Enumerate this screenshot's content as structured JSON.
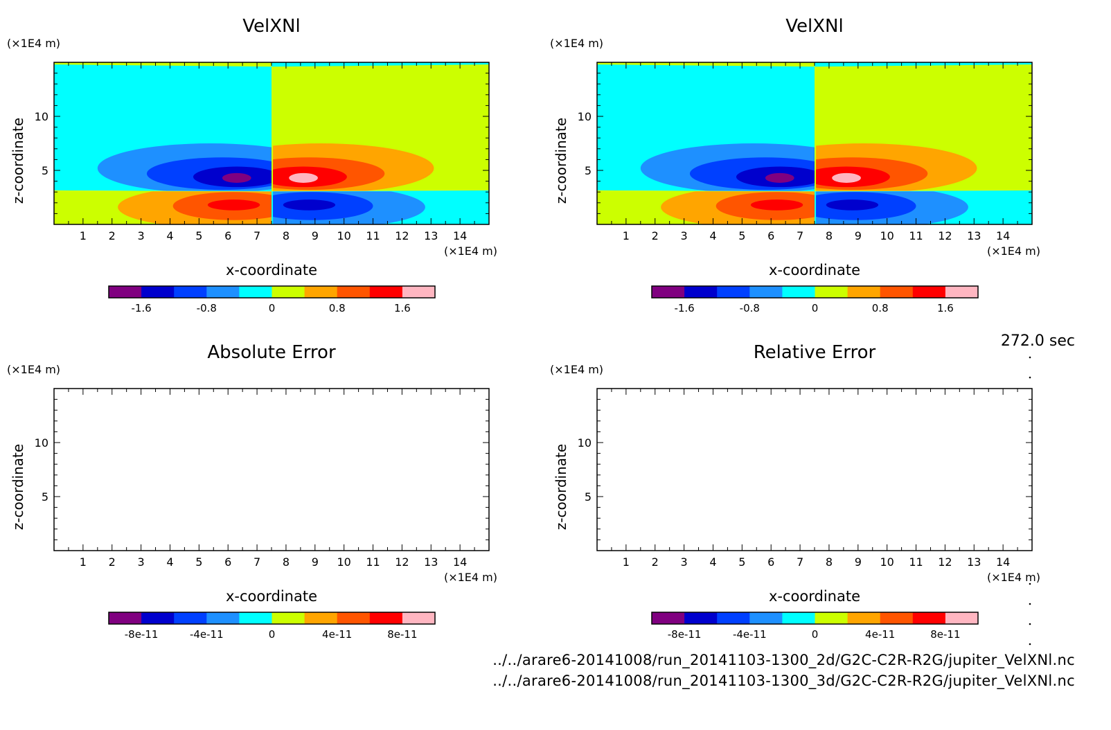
{
  "time_label": "272.0 sec",
  "footer": {
    "file_2d": "../../arare6-20141008/run_20141103-1300_2d/G2C-C2R-R2G/jupiter_VelXNl.nc",
    "file_3d": "../../arare6-20141008/run_20141103-1300_3d/G2C-C2R-R2G/jupiter_VelXNl.nc"
  },
  "chart_data": [
    {
      "type": "heatmap",
      "title": "VelXNl",
      "xlabel": "x-coordinate",
      "ylabel": "z-coordinate",
      "x_unit": "(×1E4 m)",
      "y_unit": "(×1E4 m)",
      "xlim": [
        0,
        15
      ],
      "ylim": [
        0,
        15
      ],
      "x_ticks": [
        "1",
        "2",
        "3",
        "4",
        "5",
        "6",
        "7",
        "8",
        "9",
        "10",
        "11",
        "12",
        "13",
        "14"
      ],
      "y_ticks": [
        "5",
        "10"
      ],
      "colorbar": {
        "levels": [
          -2.0,
          -1.6,
          -1.2,
          -0.8,
          -0.4,
          0,
          0.4,
          0.8,
          1.2,
          1.6,
          2.0
        ],
        "colors": [
          "#800080",
          "#0000cd",
          "#0040ff",
          "#1e90ff",
          "#00ffff",
          "#ccff00",
          "#ffa500",
          "#ff5500",
          "#ff0000",
          "#ffb6c1"
        ],
        "tick_labels": [
          "-1.6",
          "-0.8",
          "0",
          "0.8",
          "1.6"
        ]
      },
      "field": "velocity-dipole-pair",
      "empty": false
    },
    {
      "type": "heatmap",
      "title": "VelXNl",
      "xlabel": "x-coordinate",
      "ylabel": "z-coordinate",
      "x_unit": "(×1E4 m)",
      "y_unit": "(×1E4 m)",
      "xlim": [
        0,
        15
      ],
      "ylim": [
        0,
        15
      ],
      "x_ticks": [
        "1",
        "2",
        "3",
        "4",
        "5",
        "6",
        "7",
        "8",
        "9",
        "10",
        "11",
        "12",
        "13",
        "14"
      ],
      "y_ticks": [
        "5",
        "10"
      ],
      "colorbar": {
        "levels": [
          -2.0,
          -1.6,
          -1.2,
          -0.8,
          -0.4,
          0,
          0.4,
          0.8,
          1.2,
          1.6,
          2.0
        ],
        "colors": [
          "#800080",
          "#0000cd",
          "#0040ff",
          "#1e90ff",
          "#00ffff",
          "#ccff00",
          "#ffa500",
          "#ff5500",
          "#ff0000",
          "#ffb6c1"
        ],
        "tick_labels": [
          "-1.6",
          "-0.8",
          "0",
          "0.8",
          "1.6"
        ]
      },
      "field": "velocity-dipole-pair",
      "empty": false
    },
    {
      "type": "heatmap",
      "title": "Absolute Error",
      "xlabel": "x-coordinate",
      "ylabel": "z-coordinate",
      "x_unit": "(×1E4 m)",
      "y_unit": "(×1E4 m)",
      "xlim": [
        0,
        15
      ],
      "ylim": [
        0,
        15
      ],
      "x_ticks": [
        "1",
        "2",
        "3",
        "4",
        "5",
        "6",
        "7",
        "8",
        "9",
        "10",
        "11",
        "12",
        "13",
        "14"
      ],
      "y_ticks": [
        "5",
        "10"
      ],
      "colorbar": {
        "levels": [
          -1e-10,
          -8e-11,
          -6e-11,
          -4e-11,
          -2e-11,
          0,
          2e-11,
          4e-11,
          6e-11,
          8e-11,
          1e-10
        ],
        "colors": [
          "#800080",
          "#0000cd",
          "#0040ff",
          "#1e90ff",
          "#00ffff",
          "#ccff00",
          "#ffa500",
          "#ff5500",
          "#ff0000",
          "#ffb6c1"
        ],
        "tick_labels": [
          "-8e-11",
          "-4e-11",
          "0",
          "4e-11",
          "8e-11"
        ]
      },
      "field": "none",
      "empty": true
    },
    {
      "type": "heatmap",
      "title": "Relative Error",
      "xlabel": "x-coordinate",
      "ylabel": "z-coordinate",
      "x_unit": "(×1E4 m)",
      "y_unit": "(×1E4 m)",
      "xlim": [
        0,
        15
      ],
      "ylim": [
        0,
        15
      ],
      "x_ticks": [
        "1",
        "2",
        "3",
        "4",
        "5",
        "6",
        "7",
        "8",
        "9",
        "10",
        "11",
        "12",
        "13",
        "14"
      ],
      "y_ticks": [
        "5",
        "10"
      ],
      "colorbar": {
        "levels": [
          -1e-10,
          -8e-11,
          -6e-11,
          -4e-11,
          -2e-11,
          0,
          2e-11,
          4e-11,
          6e-11,
          8e-11,
          1e-10
        ],
        "colors": [
          "#800080",
          "#0000cd",
          "#0040ff",
          "#1e90ff",
          "#00ffff",
          "#ccff00",
          "#ffa500",
          "#ff5500",
          "#ff0000",
          "#ffb6c1"
        ],
        "tick_labels": [
          "-8e-11",
          "-4e-11",
          "0",
          "4e-11",
          "8e-11"
        ]
      },
      "field": "none",
      "empty": true
    }
  ]
}
